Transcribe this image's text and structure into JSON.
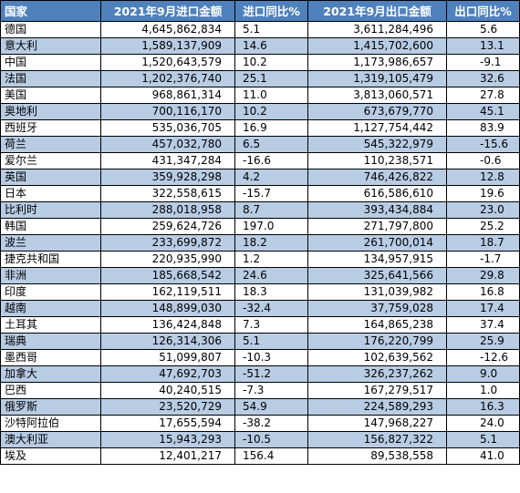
{
  "table": {
    "headers": {
      "country": "国家",
      "import_value": "2021年9月进口金额",
      "import_yoy": "进口同比%",
      "export_value": "2021年9月出口金额",
      "export_yoy": "出口同比%"
    },
    "rows": [
      {
        "country": "德国",
        "import_value": "4,645,862,834",
        "import_yoy": "5.1",
        "export_value": "3,611,284,496",
        "export_yoy": "5.6"
      },
      {
        "country": "意大利",
        "import_value": "1,589,137,909",
        "import_yoy": "14.6",
        "export_value": "1,415,702,600",
        "export_yoy": "13.1"
      },
      {
        "country": "中国",
        "import_value": "1,520,643,579",
        "import_yoy": "10.2",
        "export_value": "1,173,986,657",
        "export_yoy": "-9.1"
      },
      {
        "country": "法国",
        "import_value": "1,202,376,740",
        "import_yoy": "25.1",
        "export_value": "1,319,105,479",
        "export_yoy": "32.6"
      },
      {
        "country": "美国",
        "import_value": "968,861,314",
        "import_yoy": "11.0",
        "export_value": "3,813,060,571",
        "export_yoy": "27.8"
      },
      {
        "country": "奥地利",
        "import_value": "700,116,170",
        "import_yoy": "10.2",
        "export_value": "673,679,770",
        "export_yoy": "45.1"
      },
      {
        "country": "西班牙",
        "import_value": "535,036,705",
        "import_yoy": "16.9",
        "export_value": "1,127,754,442",
        "export_yoy": "83.9"
      },
      {
        "country": "荷兰",
        "import_value": "457,032,780",
        "import_yoy": "6.5",
        "export_value": "545,322,979",
        "export_yoy": "-15.6"
      },
      {
        "country": "爱尔兰",
        "import_value": "431,347,284",
        "import_yoy": "-16.6",
        "export_value": "110,238,571",
        "export_yoy": "-0.6"
      },
      {
        "country": "英国",
        "import_value": "359,928,298",
        "import_yoy": "4.2",
        "export_value": "746,426,822",
        "export_yoy": "12.8"
      },
      {
        "country": "日本",
        "import_value": "322,558,615",
        "import_yoy": "-15.7",
        "export_value": "616,586,610",
        "export_yoy": "19.6"
      },
      {
        "country": "比利时",
        "import_value": "288,018,958",
        "import_yoy": "8.7",
        "export_value": "393,434,884",
        "export_yoy": "23.0"
      },
      {
        "country": "韩国",
        "import_value": "259,624,726",
        "import_yoy": "197.0",
        "export_value": "271,797,800",
        "export_yoy": "25.2"
      },
      {
        "country": "波兰",
        "import_value": "233,699,872",
        "import_yoy": "18.2",
        "export_value": "261,700,014",
        "export_yoy": "18.7"
      },
      {
        "country": "捷克共和国",
        "import_value": "220,935,990",
        "import_yoy": "1.2",
        "export_value": "134,957,915",
        "export_yoy": "-1.7"
      },
      {
        "country": "非洲",
        "import_value": "185,668,542",
        "import_yoy": "24.6",
        "export_value": "325,641,566",
        "export_yoy": "29.8"
      },
      {
        "country": "印度",
        "import_value": "162,119,511",
        "import_yoy": "18.3",
        "export_value": "131,039,982",
        "export_yoy": "16.8"
      },
      {
        "country": "越南",
        "import_value": "148,899,030",
        "import_yoy": "-32.4",
        "export_value": "37,759,028",
        "export_yoy": "17.4"
      },
      {
        "country": "土耳其",
        "import_value": "136,424,848",
        "import_yoy": "7.3",
        "export_value": "164,865,238",
        "export_yoy": "37.4"
      },
      {
        "country": "瑞典",
        "import_value": "126,314,306",
        "import_yoy": "5.1",
        "export_value": "176,220,799",
        "export_yoy": "25.9"
      },
      {
        "country": "墨西哥",
        "import_value": "51,099,807",
        "import_yoy": "-10.3",
        "export_value": "102,639,562",
        "export_yoy": "-12.6"
      },
      {
        "country": "加拿大",
        "import_value": "47,692,703",
        "import_yoy": "-51.2",
        "export_value": "326,237,262",
        "export_yoy": "9.0"
      },
      {
        "country": "巴西",
        "import_value": "40,240,515",
        "import_yoy": "-7.3",
        "export_value": "167,279,517",
        "export_yoy": "1.0"
      },
      {
        "country": "俄罗斯",
        "import_value": "23,520,729",
        "import_yoy": "54.9",
        "export_value": "224,589,293",
        "export_yoy": "16.3"
      },
      {
        "country": "沙特阿拉伯",
        "import_value": "17,655,594",
        "import_yoy": "-38.2",
        "export_value": "147,968,227",
        "export_yoy": "24.0"
      },
      {
        "country": "澳大利亚",
        "import_value": "15,943,293",
        "import_yoy": "-10.5",
        "export_value": "156,827,322",
        "export_yoy": "5.1"
      },
      {
        "country": "埃及",
        "import_value": "12,401,217",
        "import_yoy": "156.4",
        "export_value": "89,538,558",
        "export_yoy": "41.0"
      }
    ]
  },
  "colors": {
    "header_bg": "#4f81bd",
    "header_text": "#ffffff",
    "alt_row_bg": "#b8cce4",
    "plain_row_bg": "#ffffff",
    "border": "#000000"
  }
}
